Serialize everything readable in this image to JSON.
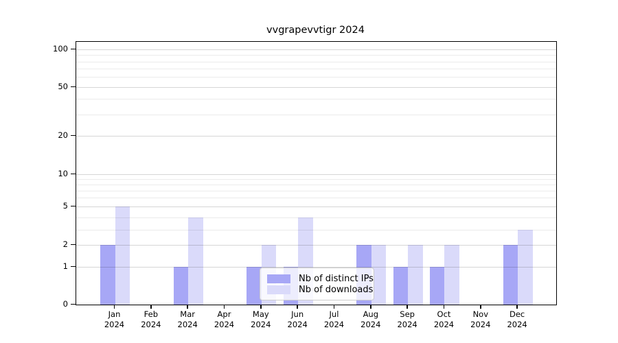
{
  "figure_title": "vvgrapevvtigr 2024",
  "chart_data": {
    "type": "bar",
    "title": "vvgrapevvtigr 2024",
    "categories": [
      "Jan 2024",
      "Feb 2024",
      "Mar 2024",
      "Apr 2024",
      "May 2024",
      "Jun 2024",
      "Jul 2024",
      "Aug 2024",
      "Sep 2024",
      "Oct 2024",
      "Nov 2024",
      "Dec 2024"
    ],
    "series": [
      {
        "name": "Nb of distinct IPs",
        "color": "#a7a7f6",
        "values": [
          2,
          0,
          1,
          0,
          1,
          1,
          0,
          2,
          1,
          1,
          0,
          2
        ]
      },
      {
        "name": "Nb of downloads",
        "color": "#dadafa",
        "values": [
          5,
          0,
          4,
          0,
          2,
          4,
          0,
          2,
          2,
          2,
          0,
          3
        ]
      }
    ],
    "xlabel": "",
    "ylabel": "",
    "yscale": "log-like",
    "y_tick_labels": [
      100,
      50,
      20,
      10,
      5,
      2,
      1,
      0
    ],
    "y_minor_gridlines": [
      3,
      4,
      6,
      7,
      8,
      9,
      30,
      40,
      60,
      70,
      80,
      90
    ],
    "ylim": [
      0,
      100
    ],
    "grid": true,
    "legend_position": "lower center"
  }
}
